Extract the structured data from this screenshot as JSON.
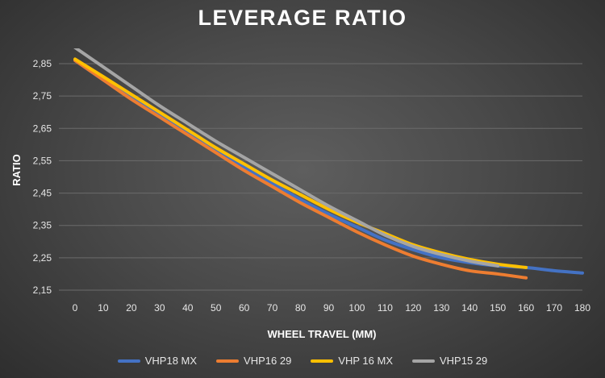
{
  "chart_data": {
    "type": "line",
    "title": "LEVERAGE RATIO",
    "xlabel": "WHEEL TRAVEL (MM)",
    "ylabel": "RATIO",
    "xlim": [
      0,
      180
    ],
    "ylim": [
      2.15,
      2.9
    ],
    "x_ticks": [
      0,
      10,
      20,
      30,
      40,
      50,
      60,
      70,
      80,
      90,
      100,
      110,
      120,
      130,
      140,
      150,
      160,
      170,
      180
    ],
    "y_ticks": [
      "2,15",
      "2,25",
      "2,35",
      "2,45",
      "2,55",
      "2,65",
      "2,75",
      "2,85"
    ],
    "y_tick_values": [
      2.15,
      2.25,
      2.35,
      2.45,
      2.55,
      2.65,
      2.75,
      2.85
    ],
    "grid": true,
    "legend_position": "bottom",
    "series": [
      {
        "name": "VHP18 MX",
        "color": "#4472c4",
        "x": [
          0,
          10,
          20,
          30,
          40,
          50,
          60,
          70,
          80,
          90,
          100,
          110,
          120,
          130,
          140,
          150,
          160,
          170,
          180
        ],
        "y": [
          2.86,
          2.8,
          2.745,
          2.69,
          2.635,
          2.58,
          2.53,
          2.48,
          2.43,
          2.385,
          2.345,
          2.305,
          2.275,
          2.25,
          2.235,
          2.225,
          2.22,
          2.21,
          2.203
        ]
      },
      {
        "name": "VHP16 29",
        "color": "#ed7d31",
        "x": [
          0,
          10,
          20,
          30,
          40,
          50,
          60,
          70,
          80,
          90,
          100,
          110,
          120,
          130,
          140,
          150,
          160
        ],
        "y": [
          2.86,
          2.8,
          2.74,
          2.685,
          2.63,
          2.575,
          2.52,
          2.47,
          2.42,
          2.375,
          2.33,
          2.29,
          2.255,
          2.23,
          2.21,
          2.2,
          2.188
        ]
      },
      {
        "name": "VHP 16 MX",
        "color": "#ffc000",
        "x": [
          0,
          10,
          20,
          30,
          40,
          50,
          60,
          70,
          80,
          90,
          100,
          110,
          120,
          130,
          140,
          150,
          160
        ],
        "y": [
          2.864,
          2.81,
          2.755,
          2.7,
          2.645,
          2.59,
          2.54,
          2.49,
          2.445,
          2.4,
          2.36,
          2.325,
          2.29,
          2.265,
          2.245,
          2.23,
          2.22
        ]
      },
      {
        "name": "VHP15 29",
        "color": "#a5a5a5",
        "x": [
          0,
          10,
          20,
          30,
          40,
          50,
          60,
          70,
          80,
          90,
          100,
          110,
          120,
          130,
          140,
          150
        ],
        "y": [
          2.9,
          2.84,
          2.78,
          2.72,
          2.665,
          2.61,
          2.56,
          2.51,
          2.46,
          2.41,
          2.365,
          2.32,
          2.285,
          2.26,
          2.24,
          2.225
        ]
      }
    ]
  }
}
